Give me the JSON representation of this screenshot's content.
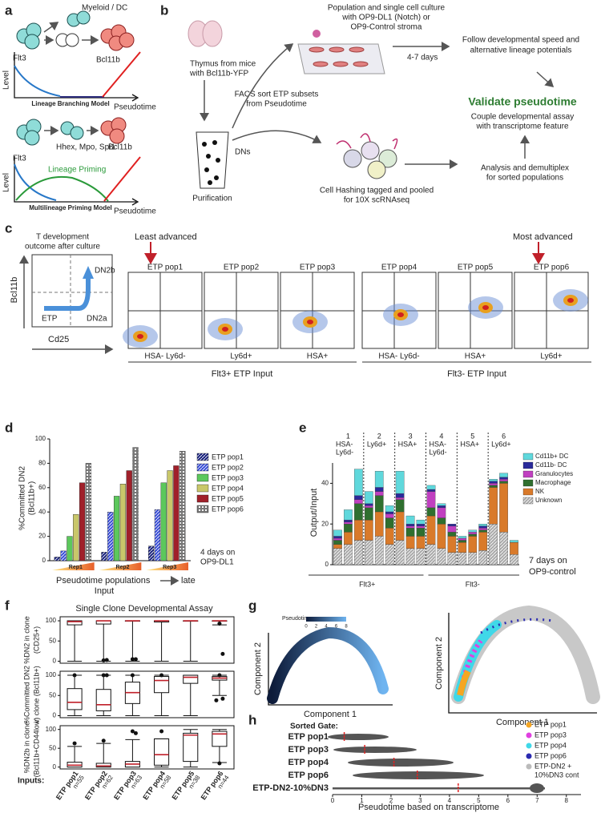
{
  "labels": [
    "a",
    "b",
    "c",
    "d",
    "e",
    "f",
    "g",
    "h"
  ],
  "panel_a": {
    "myeloid": "Myeloid / DC",
    "flt3": "Flt3",
    "bcl11b": "Bcl11b",
    "level": "Level",
    "branching": "Lineage Branching Model",
    "pseudotime": "Pseudotime",
    "genes": "Hhex, Mpo, Spi1",
    "priming": "Lineage Priming",
    "multilineage": "Multilineage Priming Model"
  },
  "panel_b": {
    "thymus": [
      "Thymus from mice",
      "with Bcl11b-YFP"
    ],
    "facs": [
      "FACS sort ETP subsets",
      "from Pseudotime"
    ],
    "culture": [
      "Population and single cell culture",
      "with OP9-DL1 (Notch) or",
      "OP9-Control stroma"
    ],
    "days": "4-7 days",
    "follow": [
      "Follow developmental speed and",
      "alternative lineage potentials"
    ],
    "validate": "Validate pseudotime",
    "couple": [
      "Couple developmental assay",
      "with transcriptome feature"
    ],
    "dns": "DNs",
    "purification": "Purification",
    "hashing": [
      "Cell Hashing tagged and pooled",
      "for 10X scRNAseq"
    ],
    "analysis": [
      "Analysis and demultiplex",
      "for sorted populations"
    ]
  },
  "panel_c": {
    "outcome": [
      "T development",
      "outcome after culture"
    ],
    "yaxis": "Bcl11b",
    "xaxis": "Cd25",
    "dn2b": "DN2b",
    "etp": "ETP",
    "dn2a": "DN2a",
    "least": "Least advanced",
    "most": "Most advanced",
    "plots": [
      "ETP pop1",
      "ETP pop2",
      "ETP pop3",
      "ETP pop4",
      "ETP pop5",
      "ETP pop6"
    ],
    "gates": [
      "HSA- Ly6d-",
      "Ly6d+",
      "HSA+",
      "HSA- Ly6d-",
      "HSA+",
      "Ly6d+"
    ],
    "inputs": [
      "Flt3+ ETP Input",
      "Flt3- ETP Input"
    ]
  },
  "panel_g": {
    "colorbar_title": "Pseudotime",
    "colorbar_ticks": [
      0,
      2,
      4,
      6,
      8
    ],
    "ylabel": "Component 2",
    "xlabel": "Component 1",
    "legend": [
      {
        "name": "ETP pop1",
        "color": "#f5a623"
      },
      {
        "name": "ETP pop3",
        "color": "#e040e0"
      },
      {
        "name": "ETP pop4",
        "color": "#40d8e8"
      },
      {
        "name": "ETP pop6",
        "color": "#2a2ab0"
      },
      {
        "name": [
          "ETP-DN2 +",
          "10%DN3 cont"
        ],
        "color": "#bbbbbb"
      }
    ]
  },
  "chart_data": [
    {
      "type": "bar",
      "categories": [
        "Rep1",
        "Rep2",
        "Rep3"
      ],
      "series": [
        {
          "name": "ETP pop1",
          "color": "#1a237e",
          "pattern": "hatch",
          "values": [
            3,
            7,
            12
          ]
        },
        {
          "name": "ETP pop2",
          "color": "#3a4fd8",
          "pattern": "hatch",
          "values": [
            8,
            40,
            42
          ]
        },
        {
          "name": "ETP pop3",
          "color": "#5cc85c",
          "values": [
            20,
            53,
            64
          ]
        },
        {
          "name": "ETP pop4",
          "color": "#c9c76a",
          "values": [
            38,
            63,
            74
          ]
        },
        {
          "name": "ETP pop5",
          "color": "#a0202a",
          "values": [
            64,
            74,
            78
          ]
        },
        {
          "name": "ETP pop6",
          "color": "#777777",
          "pattern": "checker",
          "values": [
            80,
            93,
            90
          ]
        }
      ],
      "ylim": [
        0,
        100
      ],
      "yticks": [
        0,
        20,
        40,
        60,
        80,
        100
      ],
      "ylabel": [
        "%Committed DN2",
        "(Bcl11b+)"
      ],
      "xlabel": "Pseudotime populations",
      "xlabel_end": "late",
      "xlabel2": "Input",
      "annotation": [
        "4 days on",
        "OP9-DL1"
      ]
    },
    {
      "type": "stacked_bar",
      "groups": [
        [
          "1",
          "HSA-",
          "Ly6d-"
        ],
        [
          "2",
          "Ly6d+"
        ],
        [
          "3",
          "HSA+"
        ],
        [
          "4",
          "HSA-",
          "Ly6d-"
        ],
        [
          "5",
          "HSA+"
        ],
        [
          "6",
          "Ly6d+"
        ]
      ],
      "series": [
        {
          "name": "Cd11b+ DC",
          "color": "#5fd8dc",
          "values": [
            3,
            5,
            13,
            6,
            8,
            3,
            11,
            4,
            2,
            2,
            1,
            0,
            1,
            1,
            1,
            1,
            2,
            1
          ]
        },
        {
          "name": "Cd11b- DC",
          "color": "#2a2a9a",
          "values": [
            1,
            1,
            2,
            1,
            2,
            1,
            2,
            1,
            1,
            1,
            1,
            1,
            0,
            0,
            1,
            1,
            1,
            0
          ]
        },
        {
          "name": "Granulocytes",
          "color": "#c040c0",
          "values": [
            1,
            1,
            2,
            1,
            2,
            2,
            1,
            1,
            1,
            8,
            5,
            3,
            1,
            1,
            1,
            1,
            1,
            0
          ]
        },
        {
          "name": "Macrophage",
          "color": "#2f6f2f",
          "values": [
            2,
            4,
            8,
            6,
            8,
            5,
            6,
            4,
            4,
            4,
            3,
            2,
            1,
            1,
            1,
            1,
            1,
            0
          ]
        },
        {
          "name": "NK",
          "color": "#d97a2a",
          "values": [
            2,
            6,
            10,
            10,
            12,
            8,
            14,
            6,
            6,
            14,
            12,
            8,
            5,
            8,
            9,
            18,
            24,
            6
          ]
        },
        {
          "name": "Unknown",
          "color": "#aaaaaa",
          "pattern": "hatch",
          "values": [
            8,
            10,
            12,
            12,
            14,
            10,
            12,
            8,
            8,
            10,
            8,
            6,
            6,
            6,
            7,
            20,
            16,
            5
          ]
        }
      ],
      "ylim": [
        0,
        50
      ],
      "yticks": [
        0,
        20,
        40
      ],
      "ylabel": "Output/Input",
      "inputs": [
        "Flt3+",
        "Flt3-"
      ],
      "annotation": [
        "7 days on",
        "OP9-control"
      ]
    },
    {
      "type": "box",
      "title": "Single Clone Developmental Assay",
      "categories": [
        "ETP pop1",
        "ETP pop2",
        "ETP pop3",
        "ETP pop4",
        "ETP pop5",
        "ETP pop6"
      ],
      "n_labels": [
        "n=55",
        "n=62",
        "n=63",
        "n=58",
        "n=38",
        "n=44"
      ],
      "inputs_label": "Inputs:",
      "ylim": [
        -5,
        110
      ],
      "yticks": [
        0,
        50,
        100
      ],
      "median_color": "#c0202a",
      "panels": [
        {
          "ylabel": [
            "%DN2 in clone",
            "(CD25+)"
          ],
          "boxes": [
            {
              "min": 0,
              "q1": 90,
              "median": 98,
              "q3": 100,
              "max": 100,
              "outliers": []
            },
            {
              "min": 0,
              "q1": 92,
              "median": 100,
              "q3": 100,
              "max": 100,
              "outliers": [
                2,
                3
              ]
            },
            {
              "min": 0,
              "q1": 100,
              "median": 100,
              "q3": 100,
              "max": 100,
              "outliers": [
                5,
                5
              ]
            },
            {
              "min": 0,
              "q1": 97,
              "median": 100,
              "q3": 100,
              "max": 100,
              "outliers": []
            },
            {
              "min": 0,
              "q1": 100,
              "median": 100,
              "q3": 100,
              "max": 100,
              "outliers": []
            },
            {
              "min": 90,
              "q1": 100,
              "median": 100,
              "q3": 100,
              "max": 100,
              "outliers": [
                93,
                18
              ]
            }
          ]
        },
        {
          "ylabel": [
            "%Committed DN2",
            "in clone (Bcl11b+)"
          ],
          "boxes": [
            {
              "min": 0,
              "q1": 15,
              "median": 33,
              "q3": 67,
              "max": 100,
              "outliers": [
                100
              ]
            },
            {
              "min": 0,
              "q1": 12,
              "median": 27,
              "q3": 65,
              "max": 100,
              "outliers": [
                100,
                100
              ]
            },
            {
              "min": 0,
              "q1": 30,
              "median": 57,
              "q3": 83,
              "max": 100,
              "outliers": [
                100
              ]
            },
            {
              "min": 0,
              "q1": 57,
              "median": 87,
              "q3": 97,
              "max": 100,
              "outliers": [
                100
              ]
            },
            {
              "min": 0,
              "q1": 80,
              "median": 95,
              "q3": 100,
              "max": 100,
              "outliers": []
            },
            {
              "min": 50,
              "q1": 88,
              "median": 93,
              "q3": 97,
              "max": 100,
              "outliers": [
                100,
                42,
                38
              ]
            }
          ]
        },
        {
          "ylabel": [
            "%DN2b in clone",
            "(Bcl11b+CD44low)"
          ],
          "boxes": [
            {
              "min": 0,
              "q1": 0,
              "median": 5,
              "q3": 13,
              "max": 55,
              "outliers": [
                63
              ]
            },
            {
              "min": 0,
              "q1": 0,
              "median": 3,
              "q3": 10,
              "max": 63,
              "outliers": [
                70
              ]
            },
            {
              "min": 0,
              "q1": 0,
              "median": 8,
              "q3": 15,
              "max": 73,
              "outliers": [
                95,
                90
              ]
            },
            {
              "min": 0,
              "q1": 5,
              "median": 33,
              "q3": 75,
              "max": 75,
              "outliers": [
                95
              ]
            },
            {
              "min": 0,
              "q1": 15,
              "median": 85,
              "q3": 90,
              "max": 100,
              "outliers": []
            },
            {
              "min": 12,
              "q1": 55,
              "median": 88,
              "q3": 95,
              "max": 100,
              "outliers": [
                10
              ]
            }
          ]
        }
      ]
    },
    {
      "type": "strip",
      "title": "Sorted Gate:",
      "categories": [
        "ETP pop1",
        "ETP pop3",
        "ETP pop4",
        "ETP pop6",
        "ETP-DN2-10%DN3"
      ],
      "medians": [
        0.4,
        1.1,
        2.1,
        2.9,
        4.3
      ],
      "median_color": "#e02020",
      "xlim": [
        0,
        8.5
      ],
      "xticks": [
        0,
        1,
        2,
        3,
        4,
        5,
        6,
        7,
        8
      ],
      "xlabel": "Pseudotime based on transcriptome"
    }
  ]
}
